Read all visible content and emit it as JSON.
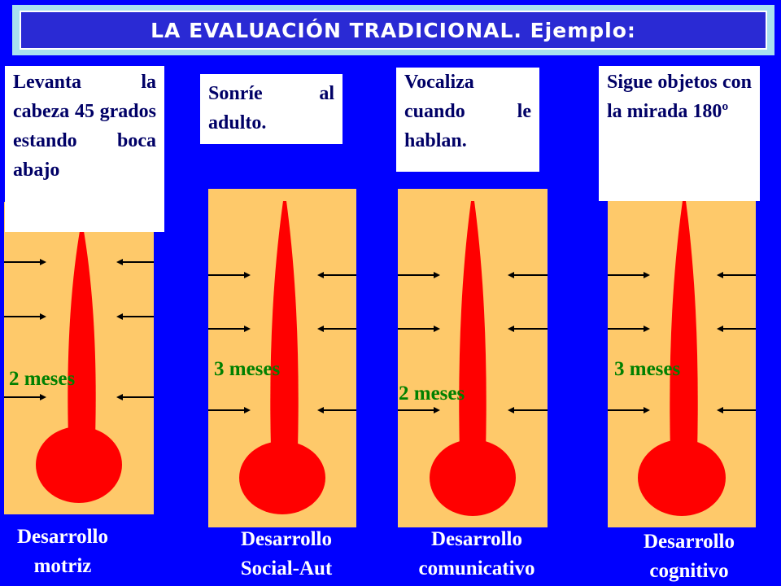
{
  "title": "LA EVALUACIÓN TRADICIONAL. Ejemplo:",
  "colors": {
    "background": "#0000ff",
    "banner_outer": "#a9e0ef",
    "banner_inner": "#2a2ad4",
    "column_fill": "#fec96a",
    "thermometer": "#ff0000",
    "age_text": "#008000",
    "note_text": "#000066",
    "label_text": "#ffffff"
  },
  "columns": [
    {
      "note": "Levanta la cabeza 45 grados estando boca abajo",
      "age": "2 meses",
      "label": "Desarrollo\nmotriz"
    },
    {
      "note": "Sonríe al adulto.",
      "age": "3 meses",
      "label": "Desarrollo\nSocial-Aut"
    },
    {
      "note": "Vocaliza cuando le hablan.",
      "age": "2 meses",
      "label": "Desarrollo\ncomunicativo"
    },
    {
      "note": "Sigue objetos con la mirada 180º",
      "age": "3 meses",
      "label": "Desarrollo\ncognitivo"
    }
  ]
}
